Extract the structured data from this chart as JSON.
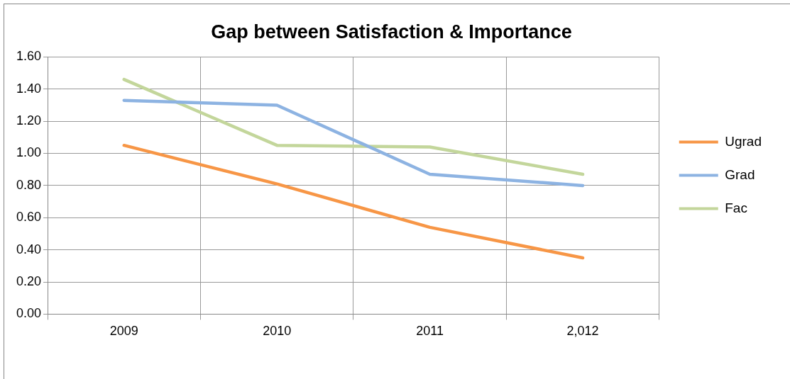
{
  "chart_data": {
    "type": "line",
    "title": "Gap between Satisfaction & Importance",
    "categories": [
      "2009",
      "2010",
      "2011",
      "2,012"
    ],
    "series": [
      {
        "name": "Ugrad",
        "color": "#f79646",
        "values": [
          1.05,
          0.81,
          0.54,
          0.35
        ]
      },
      {
        "name": "Grad",
        "color": "#8db3e2",
        "values": [
          1.33,
          1.3,
          0.87,
          0.8
        ]
      },
      {
        "name": "Fac",
        "color": "#c3d69b",
        "values": [
          1.46,
          1.05,
          1.04,
          0.87
        ]
      }
    ],
    "ylim": [
      0,
      1.6
    ],
    "yticks": [
      {
        "value": 0,
        "label": "0.00"
      },
      {
        "value": 0.2,
        "label": "0.20"
      },
      {
        "value": 0.4,
        "label": "0.40"
      },
      {
        "value": 0.6,
        "label": "0.60"
      },
      {
        "value": 0.8,
        "label": "0.80"
      },
      {
        "value": 1,
        "label": "1.00"
      },
      {
        "value": 1.2,
        "label": "1.20"
      },
      {
        "value": 1.4,
        "label": "1.40"
      },
      {
        "value": 1.6,
        "label": "1.60"
      }
    ],
    "grid": true,
    "legend": "right",
    "marker": "none",
    "line_style": "solid"
  }
}
